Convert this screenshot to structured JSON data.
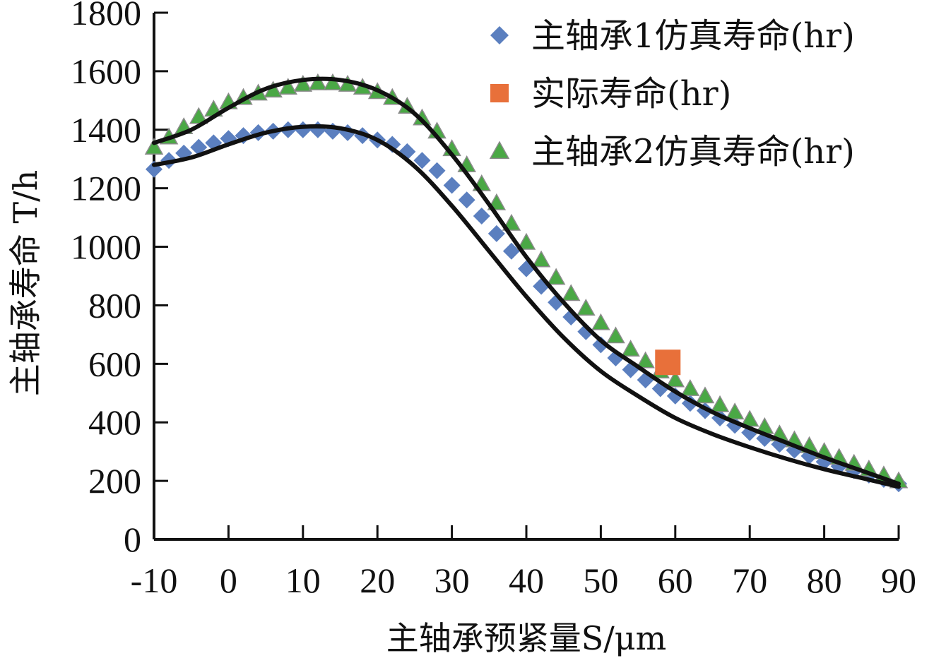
{
  "chart_data": {
    "type": "scatter",
    "xlabel": "主轴承预紧量S/μm",
    "ylabel": "主轴承寿命 T/h",
    "xlim": [
      -10,
      90
    ],
    "ylim": [
      0,
      1800
    ],
    "xticks": [
      -10,
      0,
      10,
      20,
      30,
      40,
      50,
      60,
      70,
      80,
      90
    ],
    "yticks": [
      0,
      200,
      400,
      600,
      800,
      1000,
      1200,
      1400,
      1600,
      1800
    ],
    "grid": false,
    "legend_position": "top-right",
    "series": [
      {
        "name": "主轴承1仿真寿命(hr)",
        "marker": "diamond",
        "color": "#5b7fbf",
        "x": [
          -10,
          -8,
          -6,
          -4,
          -2,
          0,
          2,
          4,
          6,
          8,
          10,
          12,
          14,
          16,
          18,
          20,
          22,
          24,
          26,
          28,
          30,
          32,
          34,
          36,
          38,
          40,
          42,
          44,
          46,
          48,
          50,
          52,
          54,
          56,
          58,
          60,
          62,
          64,
          66,
          68,
          70,
          72,
          74,
          76,
          78,
          80,
          82,
          84,
          86,
          88,
          90
        ],
        "y": [
          1265,
          1295,
          1320,
          1340,
          1355,
          1370,
          1380,
          1390,
          1395,
          1400,
          1400,
          1400,
          1395,
          1390,
          1380,
          1365,
          1350,
          1325,
          1295,
          1260,
          1210,
          1160,
          1105,
          1045,
          985,
          925,
          865,
          810,
          760,
          710,
          665,
          620,
          580,
          545,
          515,
          490,
          465,
          440,
          415,
          390,
          365,
          345,
          325,
          305,
          285,
          265,
          250,
          235,
          220,
          205,
          190
        ]
      },
      {
        "name": "实际寿命(hr)",
        "marker": "square",
        "color": "#e8703a",
        "x": [
          59
        ],
        "y": [
          605
        ]
      },
      {
        "name": "主轴承2仿真寿命(hr)",
        "marker": "triangle",
        "color": "#4aa845",
        "x": [
          -10,
          -8,
          -6,
          -4,
          -2,
          0,
          2,
          4,
          6,
          8,
          10,
          12,
          14,
          16,
          18,
          20,
          22,
          24,
          26,
          28,
          30,
          32,
          34,
          36,
          38,
          40,
          42,
          44,
          46,
          48,
          50,
          52,
          54,
          56,
          58,
          60,
          62,
          64,
          66,
          68,
          70,
          72,
          74,
          76,
          78,
          80,
          82,
          84,
          86,
          88,
          90
        ],
        "y": [
          1340,
          1375,
          1410,
          1445,
          1470,
          1495,
          1510,
          1525,
          1535,
          1545,
          1555,
          1560,
          1560,
          1555,
          1545,
          1530,
          1510,
          1480,
          1440,
          1395,
          1335,
          1280,
          1215,
          1150,
          1080,
          1015,
          955,
          895,
          840,
          790,
          740,
          695,
          650,
          610,
          575,
          545,
          515,
          490,
          460,
          435,
          410,
          385,
          360,
          340,
          320,
          300,
          280,
          260,
          240,
          220,
          200
        ]
      }
    ],
    "fit_curves": [
      {
        "x": [
          -10,
          -5,
          0,
          5,
          10,
          15,
          20,
          25,
          30,
          35,
          40,
          45,
          50,
          55,
          60,
          65,
          70,
          75,
          80,
          85,
          90
        ],
        "y": [
          1280,
          1305,
          1350,
          1390,
          1410,
          1405,
          1365,
          1275,
          1140,
          985,
          830,
          690,
          575,
          490,
          415,
          360,
          315,
          275,
          240,
          210,
          180
        ]
      },
      {
        "x": [
          -10,
          -5,
          0,
          5,
          10,
          15,
          20,
          25,
          30,
          35,
          40,
          45,
          50,
          55,
          60,
          65,
          70,
          75,
          80,
          85,
          90
        ],
        "y": [
          1355,
          1400,
          1475,
          1540,
          1570,
          1570,
          1535,
          1455,
          1315,
          1145,
          965,
          810,
          680,
          590,
          505,
          435,
          380,
          330,
          280,
          235,
          190
        ]
      }
    ]
  }
}
